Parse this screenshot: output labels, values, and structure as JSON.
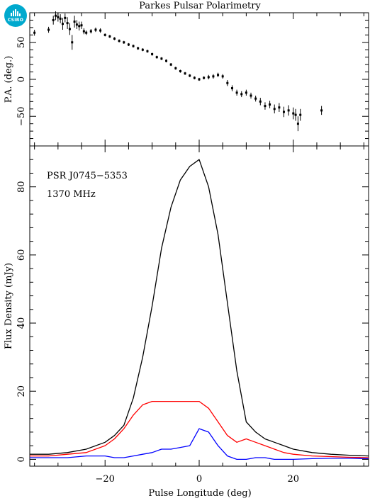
{
  "logo": {
    "text": "CSIRO",
    "icon": "csiro-logo-icon",
    "color": "#00a9ce"
  },
  "chart_data": [
    {
      "type": "scatter",
      "title": "Parkes Pulsar Polarimetry",
      "ylabel": "P.A. (deg.)",
      "xlim": [
        -36,
        36
      ],
      "ylim": [
        -90,
        90
      ],
      "yticks": [
        -50,
        0,
        50
      ],
      "xticks": [
        -20,
        0,
        20
      ],
      "grid": false,
      "series": [
        {
          "x": [
            -35,
            -32,
            -31,
            -30.5,
            -30,
            -29.5,
            -29,
            -28.5,
            -28,
            -27.5,
            -27,
            -26.5,
            -26,
            -25.5,
            -25,
            -24.5,
            -24,
            -23,
            -22,
            -21,
            -20,
            -19,
            -18,
            -17,
            -16,
            -15,
            -14,
            -13,
            -12,
            -11,
            -10,
            -9,
            -8,
            -7,
            -6,
            -5,
            -4,
            -3,
            -2,
            -1,
            0,
            1,
            2,
            3,
            4,
            5,
            6,
            7,
            8,
            9,
            10,
            11,
            12,
            13,
            14,
            15,
            16,
            17,
            18,
            19,
            20,
            20.5,
            21,
            21.5,
            26
          ],
          "y": [
            63,
            67,
            80,
            86,
            84,
            82,
            75,
            83,
            76,
            68,
            50,
            78,
            74,
            72,
            73,
            65,
            63,
            65,
            67,
            66,
            60,
            58,
            55,
            52,
            50,
            47,
            45,
            42,
            40,
            38,
            34,
            30,
            28,
            25,
            20,
            15,
            11,
            8,
            5,
            2,
            0,
            2,
            3,
            4,
            6,
            4,
            -5,
            -12,
            -18,
            -20,
            -18,
            -22,
            -26,
            -30,
            -36,
            -34,
            -40,
            -38,
            -44,
            -42,
            -46,
            -48,
            -60,
            -48,
            -42
          ],
          "err": [
            4,
            4,
            6,
            6,
            6,
            6,
            8,
            6,
            8,
            8,
            10,
            8,
            6,
            6,
            5,
            4,
            3,
            3,
            3,
            3,
            2,
            2,
            2,
            2,
            2,
            2,
            2,
            2,
            2,
            2,
            2,
            2,
            2,
            2,
            2,
            2,
            2,
            2,
            2,
            2,
            2,
            2,
            3,
            3,
            3,
            3,
            4,
            4,
            4,
            4,
            4,
            4,
            4,
            5,
            5,
            5,
            6,
            6,
            7,
            7,
            8,
            8,
            10,
            8,
            6
          ]
        }
      ]
    },
    {
      "type": "line",
      "xlabel": "Pulse Longitude (deg)",
      "ylabel": "Flux Density (mJy)",
      "xlim": [
        -36,
        36
      ],
      "ylim": [
        -2,
        92
      ],
      "yticks": [
        0,
        20,
        40,
        60,
        80
      ],
      "xticks": [
        -20,
        0,
        20
      ],
      "grid": false,
      "annotations": [
        "PSR J0745−5353",
        "1370 MHz"
      ],
      "x": [
        -36,
        -32,
        -28,
        -24,
        -20,
        -18,
        -16,
        -14,
        -12,
        -10,
        -8,
        -6,
        -4,
        -2,
        0,
        2,
        4,
        6,
        8,
        10,
        12,
        14,
        16,
        18,
        20,
        24,
        28,
        32,
        36
      ],
      "series": [
        {
          "color": "#000000",
          "values": [
            1.5,
            1.5,
            2,
            3,
            5,
            7,
            10,
            18,
            30,
            45,
            62,
            74,
            82,
            86,
            88,
            80,
            66,
            46,
            26,
            11,
            8,
            6,
            5,
            4,
            3,
            2,
            1.5,
            1.2,
            1
          ]
        },
        {
          "color": "#ff0000",
          "values": [
            1,
            1,
            1.5,
            2,
            4,
            6,
            9,
            13,
            16,
            17,
            17,
            17,
            17,
            17,
            17,
            15,
            11,
            7,
            5,
            6,
            5,
            4,
            3,
            2,
            1.5,
            1,
            0.8,
            0.6,
            0.5
          ]
        },
        {
          "color": "#0000ff",
          "values": [
            0.5,
            0.5,
            0.5,
            1,
            1,
            0.5,
            0.5,
            1,
            1.5,
            2,
            3,
            3,
            3.5,
            4,
            9,
            8,
            4,
            1,
            0,
            0,
            0.5,
            0.5,
            0,
            0,
            0,
            0.2,
            0.3,
            0.3,
            0.2
          ]
        }
      ]
    }
  ]
}
